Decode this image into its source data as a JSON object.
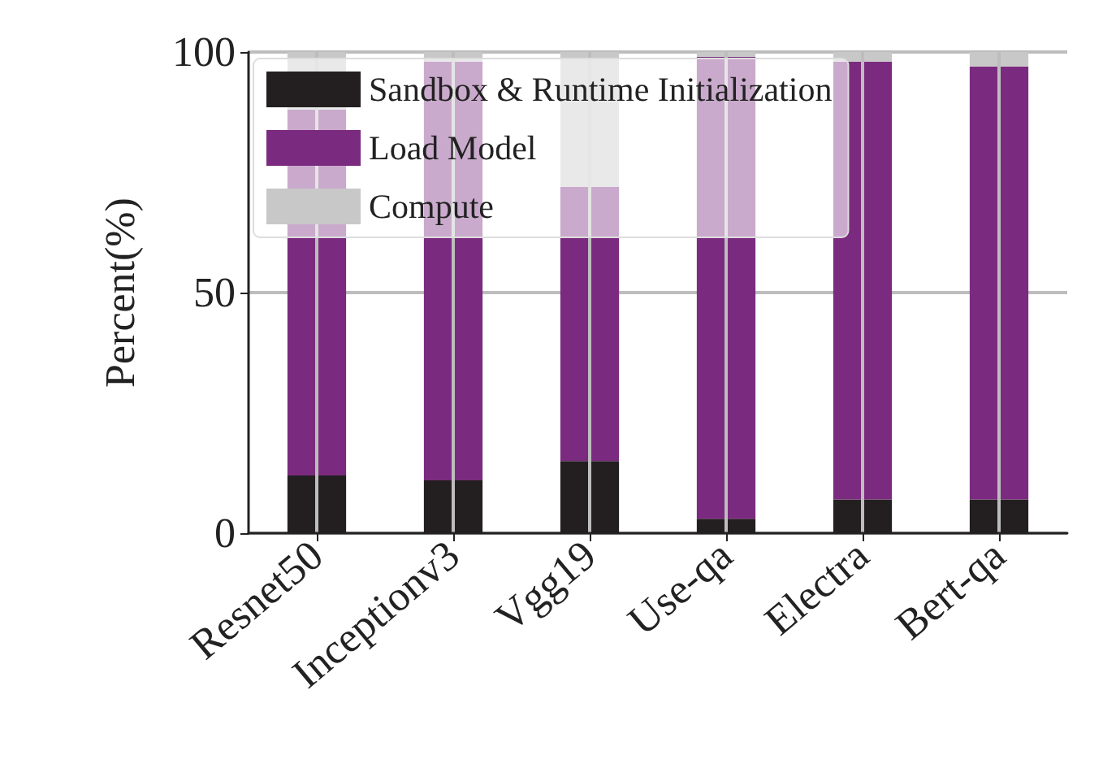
{
  "chart_data": {
    "type": "bar",
    "stacked": true,
    "ylabel": "Percent(%)",
    "categories": [
      "Resnet50",
      "Inceptionv3",
      "Vgg19",
      "Use-qa",
      "Electra",
      "Bert-qa"
    ],
    "series": [
      {
        "name": "Sandbox & Runtime Initialization",
        "color": "#231f20",
        "values": [
          12,
          11,
          15,
          3,
          7,
          7
        ]
      },
      {
        "name": "Load Model",
        "color": "#7b2b7f",
        "values": [
          76,
          87,
          57,
          96,
          91,
          90
        ]
      },
      {
        "name": "Compute",
        "color": "#c8c8c8",
        "values": [
          12,
          2,
          28,
          1,
          2,
          3
        ]
      }
    ],
    "ylim": [
      0,
      100
    ],
    "yticks": [
      0,
      50,
      100
    ],
    "grid": true,
    "legend": "top left"
  }
}
